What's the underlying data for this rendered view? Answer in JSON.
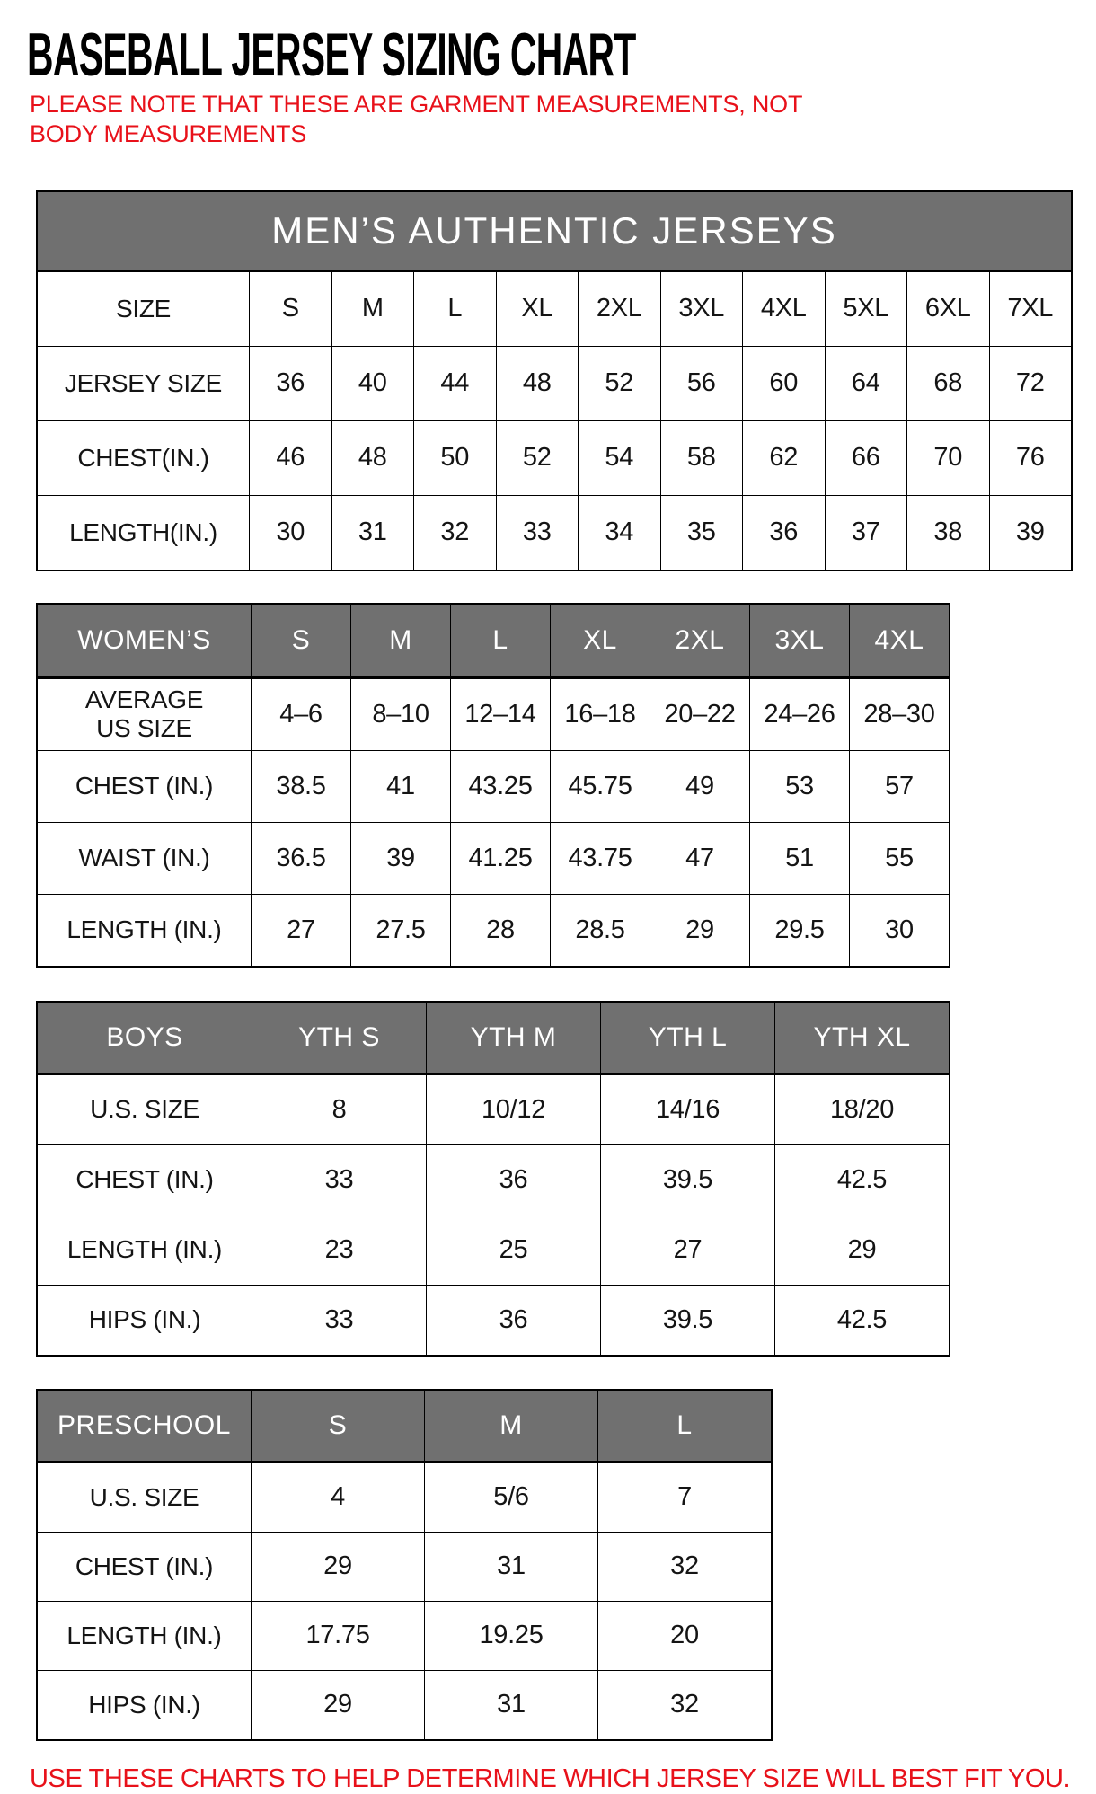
{
  "page": {
    "title": "BASEBALL JERSEY SIZING CHART",
    "note": "PLEASE NOTE THAT THESE ARE GARMENT MEASUREMENTS, NOT BODY MEASUREMENTS",
    "footer": "USE THESE CHARTS TO HELP DETERMINE WHICH JERSEY SIZE WILL BEST FIT YOU."
  },
  "colors": {
    "header_gray": "#707070",
    "accent_red": "#e8111a",
    "border_black": "#000000",
    "header_text_white": "#ffffff"
  },
  "tables": [
    {
      "id": "mens",
      "banner": "MEN’S AUTHENTIC JERSEYS",
      "rows": [
        {
          "label": "SIZE",
          "values": [
            "S",
            "M",
            "L",
            "XL",
            "2XL",
            "3XL",
            "4XL",
            "5XL",
            "6XL",
            "7XL"
          ]
        },
        {
          "label": "JERSEY SIZE",
          "values": [
            "36",
            "40",
            "44",
            "48",
            "52",
            "56",
            "60",
            "64",
            "68",
            "72"
          ]
        },
        {
          "label": "CHEST(IN.)",
          "values": [
            "46",
            "48",
            "50",
            "52",
            "54",
            "58",
            "62",
            "66",
            "70",
            "76"
          ]
        },
        {
          "label": "LENGTH(IN.)",
          "values": [
            "30",
            "31",
            "32",
            "33",
            "34",
            "35",
            "36",
            "37",
            "38",
            "39"
          ]
        }
      ]
    },
    {
      "id": "womens",
      "header_row": {
        "label": "WOMEN’S",
        "values": [
          "S",
          "M",
          "L",
          "XL",
          "2XL",
          "3XL",
          "4XL"
        ]
      },
      "rows": [
        {
          "label": "AVERAGE\nUS SIZE",
          "values": [
            "4–6",
            "8–10",
            "12–14",
            "16–18",
            "20–22",
            "24–26",
            "28–30"
          ]
        },
        {
          "label": "CHEST (IN.)",
          "values": [
            "38.5",
            "41",
            "43.25",
            "45.75",
            "49",
            "53",
            "57"
          ]
        },
        {
          "label": "WAIST (IN.)",
          "values": [
            "36.5",
            "39",
            "41.25",
            "43.75",
            "47",
            "51",
            "55"
          ]
        },
        {
          "label": "LENGTH (IN.)",
          "values": [
            "27",
            "27.5",
            "28",
            "28.5",
            "29",
            "29.5",
            "30"
          ]
        }
      ]
    },
    {
      "id": "boys",
      "header_row": {
        "label": "BOYS",
        "values": [
          "YTH S",
          "YTH M",
          "YTH L",
          "YTH XL"
        ]
      },
      "rows": [
        {
          "label": "U.S. SIZE",
          "values": [
            "8",
            "10/12",
            "14/16",
            "18/20"
          ]
        },
        {
          "label": "CHEST (IN.)",
          "values": [
            "33",
            "36",
            "39.5",
            "42.5"
          ]
        },
        {
          "label": "LENGTH (IN.)",
          "values": [
            "23",
            "25",
            "27",
            "29"
          ]
        },
        {
          "label": "HIPS (IN.)",
          "values": [
            "33",
            "36",
            "39.5",
            "42.5"
          ]
        }
      ]
    },
    {
      "id": "preschool",
      "header_row": {
        "label": "PRESCHOOL",
        "values": [
          "S",
          "M",
          "L"
        ]
      },
      "rows": [
        {
          "label": "U.S. SIZE",
          "values": [
            "4",
            "5/6",
            "7"
          ]
        },
        {
          "label": "CHEST (IN.)",
          "values": [
            "29",
            "31",
            "32"
          ]
        },
        {
          "label": "LENGTH (IN.)",
          "values": [
            "17.75",
            "19.25",
            "20"
          ]
        },
        {
          "label": "HIPS (IN.)",
          "values": [
            "29",
            "31",
            "32"
          ]
        }
      ]
    }
  ]
}
